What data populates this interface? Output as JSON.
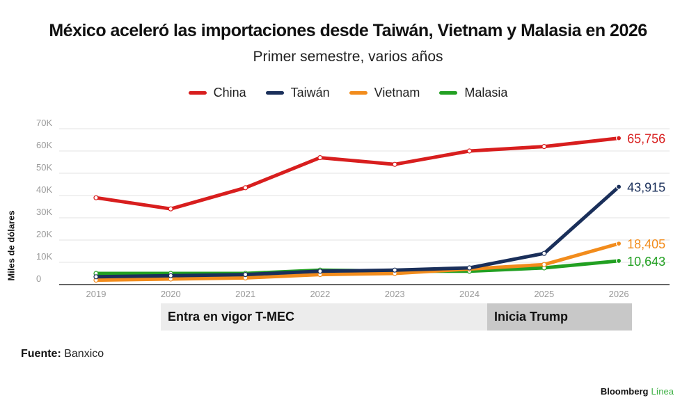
{
  "title": "México aceleró las importaciones desde Taiwán, Vietnam y Malasia en 2026",
  "subtitle": "Primer semestre, varios años",
  "source": {
    "label": "Fuente:",
    "value": "Banxico"
  },
  "brand": {
    "name": "Bloomberg",
    "accent": "Línea"
  },
  "annotations": [
    {
      "label": "Entra en vigor T-MEC",
      "from": "2020",
      "to": "2024"
    },
    {
      "label": "Inicia Trump",
      "from": "2025",
      "to": "2026"
    }
  ],
  "chart_data": {
    "type": "line",
    "title": "México aceleró las importaciones desde Taiwán, Vietnam y Malasia en 2026",
    "subtitle": "Primer semestre, varios años",
    "ylabel": "Miles de dólares",
    "xlabel": "",
    "x": [
      "2019",
      "2020",
      "2021",
      "2022",
      "2023",
      "2024",
      "2025",
      "2026"
    ],
    "ylim": [
      0,
      70000
    ],
    "yticks": [
      0,
      10000,
      20000,
      30000,
      40000,
      50000,
      60000,
      70000
    ],
    "ytick_labels": [
      "0",
      "10K",
      "20K",
      "30K",
      "40K",
      "50K",
      "60K",
      "70K"
    ],
    "grid": true,
    "legend": "top-center",
    "series": [
      {
        "name": "China",
        "color": "#d81e1e",
        "values": [
          39000,
          34000,
          43500,
          57000,
          54000,
          60000,
          62000,
          65756
        ],
        "end_label": "65,756"
      },
      {
        "name": "Taiwán",
        "color": "#1a2f5a",
        "values": [
          3500,
          4000,
          4500,
          6000,
          6500,
          7500,
          14000,
          43915
        ],
        "end_label": "43,915"
      },
      {
        "name": "Vietnam",
        "color": "#f28c1c",
        "values": [
          2000,
          2500,
          3000,
          4500,
          5000,
          7000,
          9000,
          18405
        ],
        "end_label": "18,405"
      },
      {
        "name": "Malasia",
        "color": "#22a022",
        "values": [
          5000,
          5000,
          5000,
          6500,
          6000,
          6000,
          7500,
          10643
        ],
        "end_label": "10,643"
      }
    ]
  }
}
